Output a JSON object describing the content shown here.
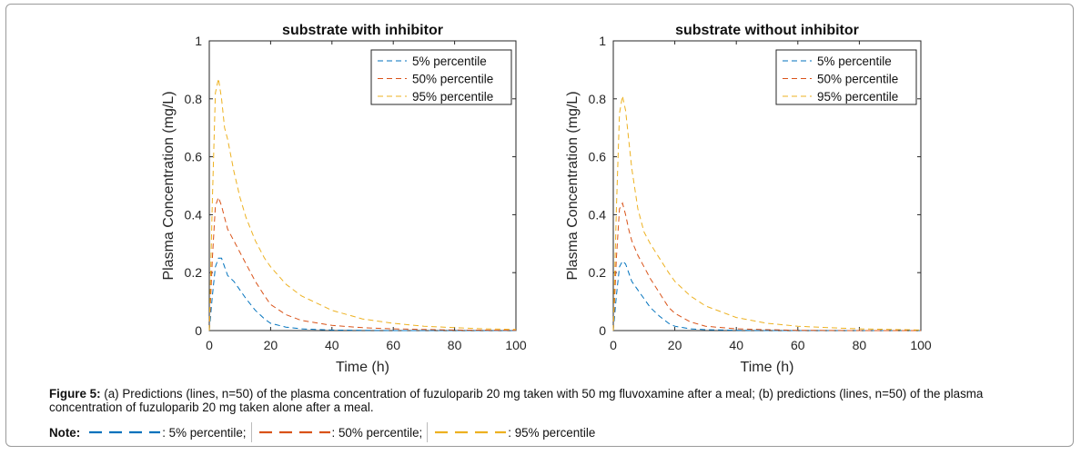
{
  "chart_data": [
    {
      "type": "line",
      "title": "substrate with inhibitor",
      "xlabel": "Time (h)",
      "ylabel": "Plasma Concentration (mg/L)",
      "xlim": [
        0,
        100
      ],
      "ylim": [
        0,
        1
      ],
      "xticks": [
        0,
        20,
        40,
        60,
        80,
        100
      ],
      "yticks": [
        0,
        0.2,
        0.4,
        0.6,
        0.8,
        1
      ],
      "legend_position": "top-right",
      "grid": false,
      "series": [
        {
          "name": "5% percentile",
          "color": "#0072BD",
          "x": [
            0,
            1,
            2,
            3,
            4,
            5,
            6,
            8,
            10,
            12,
            15,
            18,
            20,
            25,
            30,
            40,
            50,
            60,
            80,
            100
          ],
          "y": [
            0,
            0.12,
            0.22,
            0.25,
            0.25,
            0.22,
            0.19,
            0.17,
            0.14,
            0.11,
            0.07,
            0.04,
            0.025,
            0.012,
            0.006,
            0.002,
            0.001,
            0,
            0,
            0
          ]
        },
        {
          "name": "50% percentile",
          "color": "#D95319",
          "x": [
            0,
            1,
            2,
            3,
            4,
            5,
            6,
            8,
            10,
            12,
            15,
            18,
            20,
            25,
            30,
            40,
            50,
            60,
            80,
            100
          ],
          "y": [
            0,
            0.25,
            0.43,
            0.46,
            0.43,
            0.39,
            0.35,
            0.31,
            0.27,
            0.23,
            0.17,
            0.12,
            0.09,
            0.055,
            0.035,
            0.018,
            0.01,
            0.006,
            0.002,
            0.001
          ]
        },
        {
          "name": "95% percentile",
          "color": "#EDB120",
          "x": [
            0,
            1,
            2,
            3,
            4,
            5,
            6,
            8,
            10,
            12,
            15,
            18,
            20,
            25,
            30,
            40,
            50,
            60,
            70,
            80,
            90,
            100
          ],
          "y": [
            0,
            0.45,
            0.82,
            0.87,
            0.8,
            0.7,
            0.66,
            0.55,
            0.46,
            0.39,
            0.31,
            0.25,
            0.22,
            0.16,
            0.12,
            0.07,
            0.04,
            0.025,
            0.015,
            0.01,
            0.006,
            0.004
          ]
        }
      ]
    },
    {
      "type": "line",
      "title": "substrate without inhibitor",
      "xlabel": "Time (h)",
      "ylabel": "Plasma Concentration (mg/L)",
      "xlim": [
        0,
        100
      ],
      "ylim": [
        0,
        1
      ],
      "xticks": [
        0,
        20,
        40,
        60,
        80,
        100
      ],
      "yticks": [
        0,
        0.2,
        0.4,
        0.6,
        0.8,
        1
      ],
      "legend_position": "top-right",
      "grid": false,
      "series": [
        {
          "name": "5% percentile",
          "color": "#0072BD",
          "x": [
            0,
            1,
            2,
            3,
            4,
            5,
            6,
            8,
            10,
            12,
            15,
            18,
            20,
            25,
            30,
            40,
            50,
            60,
            80,
            100
          ],
          "y": [
            0,
            0.12,
            0.22,
            0.24,
            0.23,
            0.2,
            0.17,
            0.14,
            0.11,
            0.08,
            0.05,
            0.025,
            0.015,
            0.006,
            0.003,
            0.001,
            0,
            0,
            0,
            0
          ]
        },
        {
          "name": "50% percentile",
          "color": "#D95319",
          "x": [
            0,
            1,
            2,
            3,
            4,
            5,
            6,
            8,
            10,
            12,
            15,
            18,
            20,
            25,
            30,
            40,
            50,
            60,
            80,
            100
          ],
          "y": [
            0,
            0.25,
            0.42,
            0.44,
            0.4,
            0.35,
            0.31,
            0.26,
            0.22,
            0.18,
            0.13,
            0.08,
            0.06,
            0.03,
            0.015,
            0.006,
            0.003,
            0.001,
            0,
            0
          ]
        },
        {
          "name": "95% percentile",
          "color": "#EDB120",
          "x": [
            0,
            1,
            2,
            3,
            4,
            5,
            6,
            8,
            10,
            12,
            15,
            18,
            20,
            25,
            30,
            40,
            50,
            60,
            70,
            80,
            90,
            100
          ],
          "y": [
            0,
            0.42,
            0.75,
            0.81,
            0.76,
            0.66,
            0.56,
            0.42,
            0.34,
            0.3,
            0.25,
            0.2,
            0.17,
            0.12,
            0.085,
            0.045,
            0.025,
            0.015,
            0.01,
            0.006,
            0.004,
            0.002
          ]
        }
      ]
    }
  ],
  "caption": {
    "label": "Figure 5:",
    "text": " (a) Predictions (lines, n=50) of the plasma concentration of fuzuloparib 20 mg taken with 50 mg fluvoxamine after a meal; (b) predictions (lines, n=50) of the plasma concentration of fuzuloparib 20 mg taken alone after a meal."
  },
  "note": {
    "label": "Note:",
    "items": [
      {
        "text": ": 5% percentile;",
        "color": "#0072BD"
      },
      {
        "text": ": 50% percentile;",
        "color": "#D95319"
      },
      {
        "text": ": 95% percentile",
        "color": "#EDB120"
      }
    ]
  }
}
